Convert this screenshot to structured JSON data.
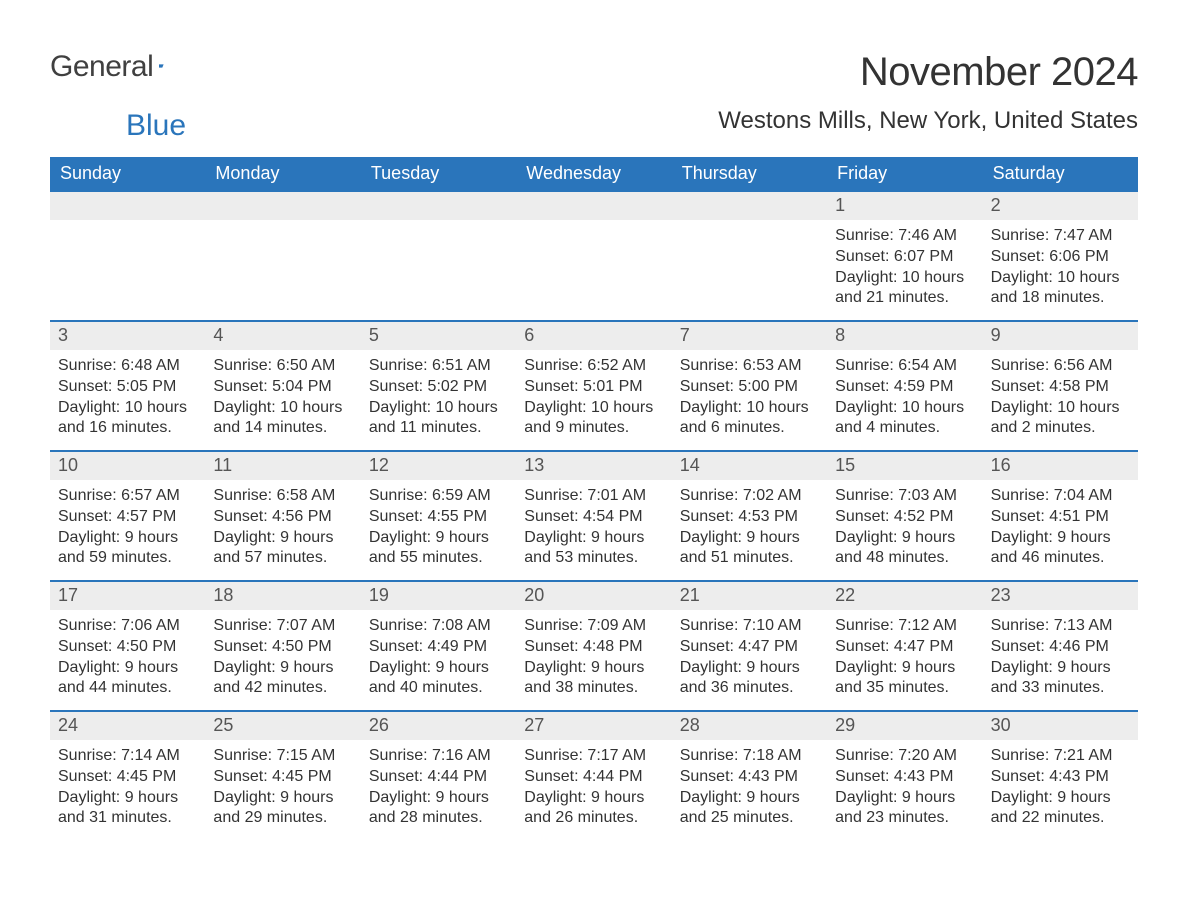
{
  "brand": {
    "word1": "General",
    "word2": "Blue",
    "word1_color": "#404040",
    "word2_color": "#2A75BB",
    "flag_color": "#2A75BB"
  },
  "header": {
    "month_title": "November 2024",
    "location": "Westons Mills, New York, United States"
  },
  "styling": {
    "header_bg": "#2A75BB",
    "header_text": "#ffffff",
    "daynum_bg": "#EDEDED",
    "daynum_text": "#555555",
    "body_text": "#333333",
    "row_border": "#2A75BB",
    "page_bg": "#ffffff",
    "title_fontsize": 40,
    "location_fontsize": 24,
    "weekday_fontsize": 18,
    "body_fontsize": 16
  },
  "weekdays": [
    "Sunday",
    "Monday",
    "Tuesday",
    "Wednesday",
    "Thursday",
    "Friday",
    "Saturday"
  ],
  "weeks": [
    [
      {
        "empty": true
      },
      {
        "empty": true
      },
      {
        "empty": true
      },
      {
        "empty": true
      },
      {
        "empty": true
      },
      {
        "day": "1",
        "sunrise": "Sunrise: 7:46 AM",
        "sunset": "Sunset: 6:07 PM",
        "daylight1": "Daylight: 10 hours",
        "daylight2": "and 21 minutes."
      },
      {
        "day": "2",
        "sunrise": "Sunrise: 7:47 AM",
        "sunset": "Sunset: 6:06 PM",
        "daylight1": "Daylight: 10 hours",
        "daylight2": "and 18 minutes."
      }
    ],
    [
      {
        "day": "3",
        "sunrise": "Sunrise: 6:48 AM",
        "sunset": "Sunset: 5:05 PM",
        "daylight1": "Daylight: 10 hours",
        "daylight2": "and 16 minutes."
      },
      {
        "day": "4",
        "sunrise": "Sunrise: 6:50 AM",
        "sunset": "Sunset: 5:04 PM",
        "daylight1": "Daylight: 10 hours",
        "daylight2": "and 14 minutes."
      },
      {
        "day": "5",
        "sunrise": "Sunrise: 6:51 AM",
        "sunset": "Sunset: 5:02 PM",
        "daylight1": "Daylight: 10 hours",
        "daylight2": "and 11 minutes."
      },
      {
        "day": "6",
        "sunrise": "Sunrise: 6:52 AM",
        "sunset": "Sunset: 5:01 PM",
        "daylight1": "Daylight: 10 hours",
        "daylight2": "and 9 minutes."
      },
      {
        "day": "7",
        "sunrise": "Sunrise: 6:53 AM",
        "sunset": "Sunset: 5:00 PM",
        "daylight1": "Daylight: 10 hours",
        "daylight2": "and 6 minutes."
      },
      {
        "day": "8",
        "sunrise": "Sunrise: 6:54 AM",
        "sunset": "Sunset: 4:59 PM",
        "daylight1": "Daylight: 10 hours",
        "daylight2": "and 4 minutes."
      },
      {
        "day": "9",
        "sunrise": "Sunrise: 6:56 AM",
        "sunset": "Sunset: 4:58 PM",
        "daylight1": "Daylight: 10 hours",
        "daylight2": "and 2 minutes."
      }
    ],
    [
      {
        "day": "10",
        "sunrise": "Sunrise: 6:57 AM",
        "sunset": "Sunset: 4:57 PM",
        "daylight1": "Daylight: 9 hours",
        "daylight2": "and 59 minutes."
      },
      {
        "day": "11",
        "sunrise": "Sunrise: 6:58 AM",
        "sunset": "Sunset: 4:56 PM",
        "daylight1": "Daylight: 9 hours",
        "daylight2": "and 57 minutes."
      },
      {
        "day": "12",
        "sunrise": "Sunrise: 6:59 AM",
        "sunset": "Sunset: 4:55 PM",
        "daylight1": "Daylight: 9 hours",
        "daylight2": "and 55 minutes."
      },
      {
        "day": "13",
        "sunrise": "Sunrise: 7:01 AM",
        "sunset": "Sunset: 4:54 PM",
        "daylight1": "Daylight: 9 hours",
        "daylight2": "and 53 minutes."
      },
      {
        "day": "14",
        "sunrise": "Sunrise: 7:02 AM",
        "sunset": "Sunset: 4:53 PM",
        "daylight1": "Daylight: 9 hours",
        "daylight2": "and 51 minutes."
      },
      {
        "day": "15",
        "sunrise": "Sunrise: 7:03 AM",
        "sunset": "Sunset: 4:52 PM",
        "daylight1": "Daylight: 9 hours",
        "daylight2": "and 48 minutes."
      },
      {
        "day": "16",
        "sunrise": "Sunrise: 7:04 AM",
        "sunset": "Sunset: 4:51 PM",
        "daylight1": "Daylight: 9 hours",
        "daylight2": "and 46 minutes."
      }
    ],
    [
      {
        "day": "17",
        "sunrise": "Sunrise: 7:06 AM",
        "sunset": "Sunset: 4:50 PM",
        "daylight1": "Daylight: 9 hours",
        "daylight2": "and 44 minutes."
      },
      {
        "day": "18",
        "sunrise": "Sunrise: 7:07 AM",
        "sunset": "Sunset: 4:50 PM",
        "daylight1": "Daylight: 9 hours",
        "daylight2": "and 42 minutes."
      },
      {
        "day": "19",
        "sunrise": "Sunrise: 7:08 AM",
        "sunset": "Sunset: 4:49 PM",
        "daylight1": "Daylight: 9 hours",
        "daylight2": "and 40 minutes."
      },
      {
        "day": "20",
        "sunrise": "Sunrise: 7:09 AM",
        "sunset": "Sunset: 4:48 PM",
        "daylight1": "Daylight: 9 hours",
        "daylight2": "and 38 minutes."
      },
      {
        "day": "21",
        "sunrise": "Sunrise: 7:10 AM",
        "sunset": "Sunset: 4:47 PM",
        "daylight1": "Daylight: 9 hours",
        "daylight2": "and 36 minutes."
      },
      {
        "day": "22",
        "sunrise": "Sunrise: 7:12 AM",
        "sunset": "Sunset: 4:47 PM",
        "daylight1": "Daylight: 9 hours",
        "daylight2": "and 35 minutes."
      },
      {
        "day": "23",
        "sunrise": "Sunrise: 7:13 AM",
        "sunset": "Sunset: 4:46 PM",
        "daylight1": "Daylight: 9 hours",
        "daylight2": "and 33 minutes."
      }
    ],
    [
      {
        "day": "24",
        "sunrise": "Sunrise: 7:14 AM",
        "sunset": "Sunset: 4:45 PM",
        "daylight1": "Daylight: 9 hours",
        "daylight2": "and 31 minutes."
      },
      {
        "day": "25",
        "sunrise": "Sunrise: 7:15 AM",
        "sunset": "Sunset: 4:45 PM",
        "daylight1": "Daylight: 9 hours",
        "daylight2": "and 29 minutes."
      },
      {
        "day": "26",
        "sunrise": "Sunrise: 7:16 AM",
        "sunset": "Sunset: 4:44 PM",
        "daylight1": "Daylight: 9 hours",
        "daylight2": "and 28 minutes."
      },
      {
        "day": "27",
        "sunrise": "Sunrise: 7:17 AM",
        "sunset": "Sunset: 4:44 PM",
        "daylight1": "Daylight: 9 hours",
        "daylight2": "and 26 minutes."
      },
      {
        "day": "28",
        "sunrise": "Sunrise: 7:18 AM",
        "sunset": "Sunset: 4:43 PM",
        "daylight1": "Daylight: 9 hours",
        "daylight2": "and 25 minutes."
      },
      {
        "day": "29",
        "sunrise": "Sunrise: 7:20 AM",
        "sunset": "Sunset: 4:43 PM",
        "daylight1": "Daylight: 9 hours",
        "daylight2": "and 23 minutes."
      },
      {
        "day": "30",
        "sunrise": "Sunrise: 7:21 AM",
        "sunset": "Sunset: 4:43 PM",
        "daylight1": "Daylight: 9 hours",
        "daylight2": "and 22 minutes."
      }
    ]
  ]
}
